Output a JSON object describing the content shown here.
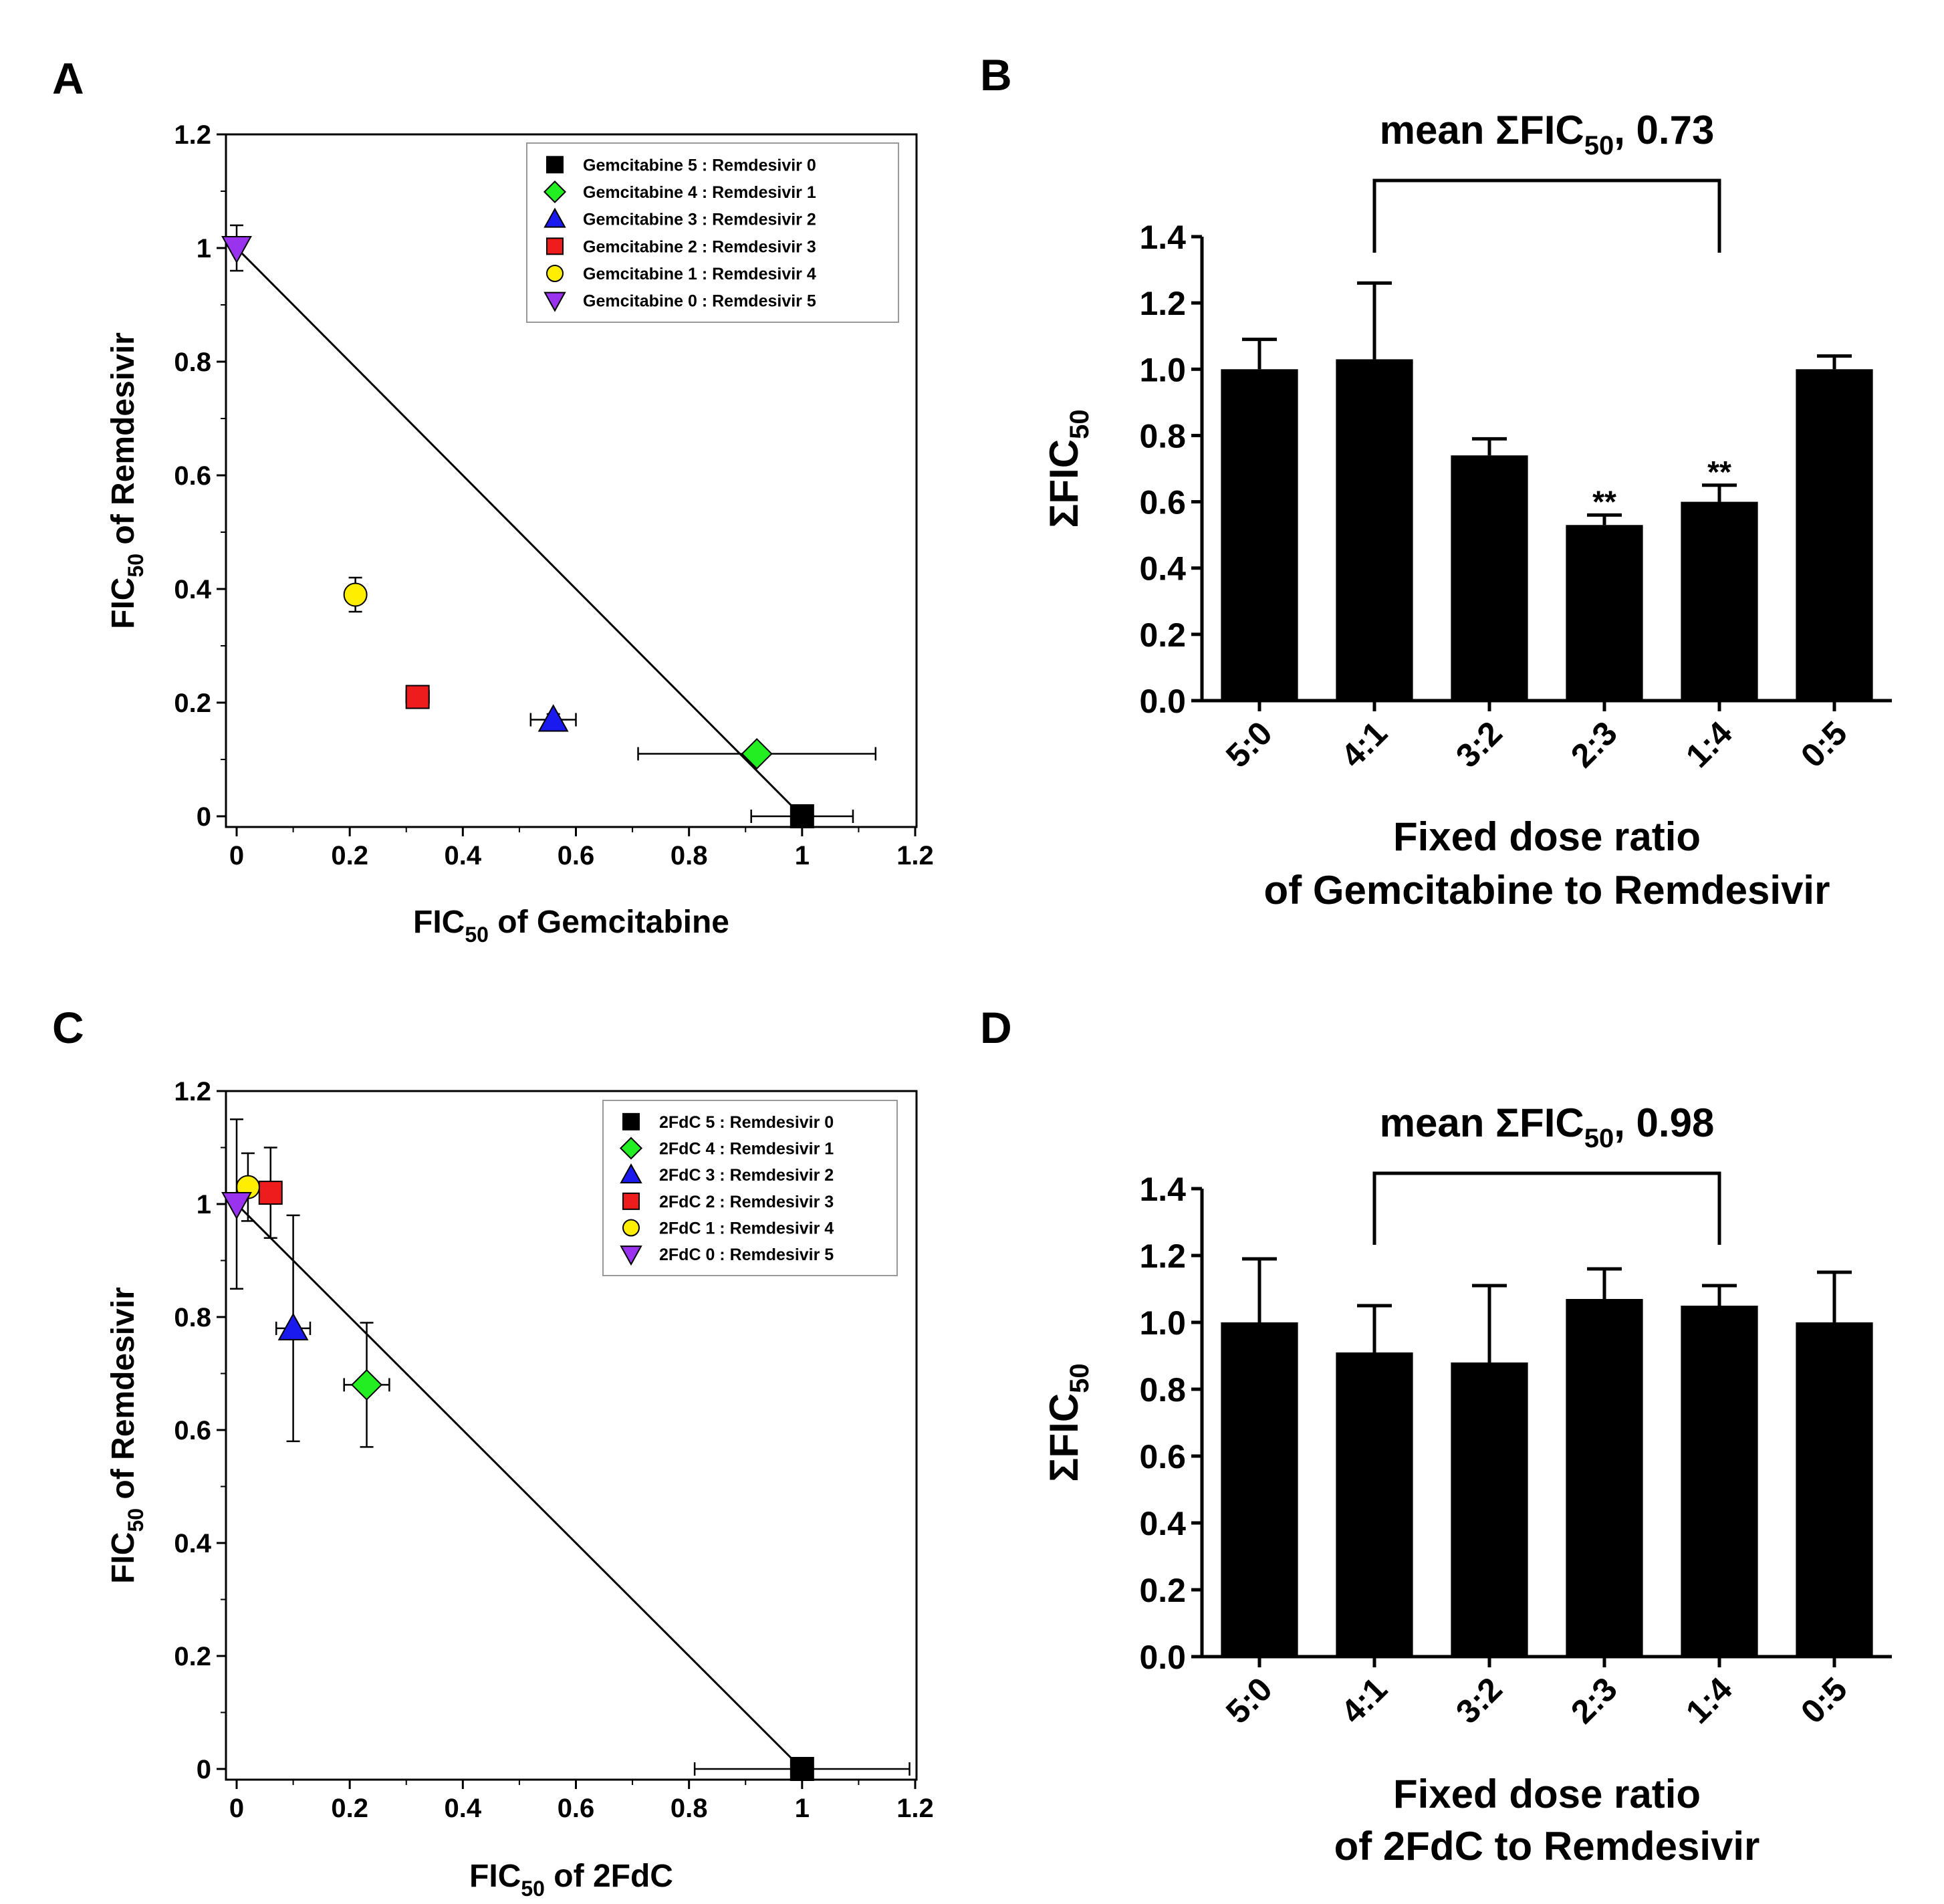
{
  "colors": {
    "black": "#000000",
    "green": "#22ee22",
    "blue": "#1a1aee",
    "red": "#ee1c1c",
    "yellow": "#ffee00",
    "purple": "#9933ee"
  },
  "chart_data": [
    {
      "panel": "A",
      "type": "scatter",
      "xlabel_prefix": "FIC",
      "xlabel_sub": "50",
      "xlabel_suffix": " of Gemcitabine",
      "ylabel_prefix": "FIC",
      "ylabel_sub": "50",
      "ylabel_suffix": " of Remdesivir",
      "xlim": [
        0,
        1.2
      ],
      "ylim": [
        0,
        1.2
      ],
      "xticks": [
        "0",
        "0.2",
        "0.4",
        "0.6",
        "0.8",
        "1",
        "1.2"
      ],
      "yticks": [
        "0",
        "0.2",
        "0.4",
        "0.6",
        "0.8",
        "1",
        "1.2"
      ],
      "additivity_line": [
        [
          0,
          1
        ],
        [
          1,
          0
        ]
      ],
      "points": [
        {
          "label": "Gemcitabine 5 : Remdesivir 0",
          "marker": "square",
          "color": "black",
          "x": 1.0,
          "y": 0.0,
          "xerr": 0.09,
          "yerr": 0.0
        },
        {
          "label": "Gemcitabine 4 : Remdesivir 1",
          "marker": "diamond",
          "color": "green",
          "x": 0.92,
          "y": 0.11,
          "xerr": 0.21,
          "yerr": 0.0
        },
        {
          "label": "Gemcitabine 3 : Remdesivir 2",
          "marker": "triangle-up",
          "color": "blue",
          "x": 0.56,
          "y": 0.17,
          "xerr": 0.04,
          "yerr": 0.01
        },
        {
          "label": "Gemcitabine 2 : Remdesivir 3",
          "marker": "square",
          "color": "red",
          "x": 0.32,
          "y": 0.21,
          "xerr": 0.02,
          "yerr": 0.0
        },
        {
          "label": "Gemcitabine 1 : Remdesivir 4",
          "marker": "circle",
          "color": "yellow",
          "x": 0.21,
          "y": 0.39,
          "xerr": 0.0,
          "yerr": 0.03
        },
        {
          "label": "Gemcitabine 0 : Remdesivir 5",
          "marker": "triangle-down",
          "color": "purple",
          "x": 0.0,
          "y": 1.0,
          "xerr": 0.0,
          "yerr": 0.04
        }
      ]
    },
    {
      "panel": "B",
      "type": "bar",
      "title_prefix": "mean ΣFIC",
      "title_sub": "50",
      "title_suffix": ", 0.73",
      "ylabel_prefix": "ΣFIC",
      "ylabel_sub": "50",
      "xlabel_line1": "Fixed dose ratio",
      "xlabel_line2": "of Gemcitabine to Remdesivir",
      "categories": [
        "5:0",
        "4:1",
        "3:2",
        "2:3",
        "1:4",
        "0:5"
      ],
      "values": [
        1.0,
        1.03,
        0.74,
        0.53,
        0.6,
        1.0
      ],
      "errors": [
        0.09,
        0.23,
        0.05,
        0.03,
        0.05,
        0.04
      ],
      "annotations": [
        "",
        "",
        "",
        "**",
        "**",
        ""
      ],
      "bracket": [
        1,
        4
      ],
      "ylim": [
        0,
        1.4
      ],
      "yticks": [
        "0.0",
        "0.2",
        "0.4",
        "0.6",
        "0.8",
        "1.0",
        "1.2",
        "1.4"
      ]
    },
    {
      "panel": "C",
      "type": "scatter",
      "xlabel_prefix": "FIC",
      "xlabel_sub": "50",
      "xlabel_suffix": " of 2FdC",
      "ylabel_prefix": "FIC",
      "ylabel_sub": "50",
      "ylabel_suffix": " of Remdesivir",
      "xlim": [
        0,
        1.2
      ],
      "ylim": [
        0,
        1.2
      ],
      "xticks": [
        "0",
        "0.2",
        "0.4",
        "0.6",
        "0.8",
        "1",
        "1.2"
      ],
      "yticks": [
        "0",
        "0.2",
        "0.4",
        "0.6",
        "0.8",
        "1",
        "1.2"
      ],
      "additivity_line": [
        [
          0,
          1
        ],
        [
          1,
          0
        ]
      ],
      "points": [
        {
          "label": "2FdC 5 : Remdesivir 0",
          "marker": "square",
          "color": "black",
          "x": 1.0,
          "y": 0.0,
          "xerr": 0.19,
          "yerr": 0.0
        },
        {
          "label": "2FdC 4 : Remdesivir 1",
          "marker": "diamond",
          "color": "green",
          "x": 0.23,
          "y": 0.68,
          "xerr": 0.04,
          "yerr": 0.11
        },
        {
          "label": "2FdC 3 : Remdesivir 2",
          "marker": "triangle-up",
          "color": "blue",
          "x": 0.1,
          "y": 0.78,
          "xerr": 0.03,
          "yerr": 0.2
        },
        {
          "label": "2FdC 2 : Remdesivir 3",
          "marker": "square",
          "color": "red",
          "x": 0.06,
          "y": 1.02,
          "xerr": 0.0,
          "yerr": 0.08
        },
        {
          "label": "2FdC 1 : Remdesivir 4",
          "marker": "circle",
          "color": "yellow",
          "x": 0.02,
          "y": 1.03,
          "xerr": 0.0,
          "yerr": 0.06
        },
        {
          "label": "2FdC 0 : Remdesivir 5",
          "marker": "triangle-down",
          "color": "purple",
          "x": 0.0,
          "y": 1.0,
          "xerr": 0.0,
          "yerr": 0.15
        }
      ]
    },
    {
      "panel": "D",
      "type": "bar",
      "title_prefix": "mean ΣFIC",
      "title_sub": "50",
      "title_suffix": ", 0.98",
      "ylabel_prefix": "ΣFIC",
      "ylabel_sub": "50",
      "xlabel_line1": "Fixed dose ratio",
      "xlabel_line2": "of 2FdC to Remdesivir",
      "categories": [
        "5:0",
        "4:1",
        "3:2",
        "2:3",
        "1:4",
        "0:5"
      ],
      "values": [
        1.0,
        0.91,
        0.88,
        1.07,
        1.05,
        1.0
      ],
      "errors": [
        0.19,
        0.14,
        0.23,
        0.09,
        0.06,
        0.15
      ],
      "annotations": [
        "",
        "",
        "",
        "",
        "",
        ""
      ],
      "bracket": [
        1,
        4
      ],
      "ylim": [
        0,
        1.4
      ],
      "yticks": [
        "0.0",
        "0.2",
        "0.4",
        "0.6",
        "0.8",
        "1.0",
        "1.2",
        "1.4"
      ]
    }
  ]
}
